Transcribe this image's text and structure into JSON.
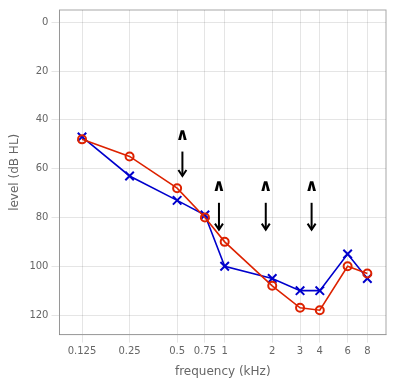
{
  "chart_data": {
    "type": "line",
    "log": "x",
    "x": [
      0.125,
      0.25,
      0.5,
      0.75,
      1,
      2,
      3,
      4,
      6,
      8
    ],
    "series": [
      {
        "color": "#dd2200",
        "marker": "circle",
        "values": [
          48,
          55,
          68,
          80,
          90,
          108,
          117,
          118,
          100,
          103
        ]
      },
      {
        "color": "#0000cc",
        "marker": "x",
        "values": [
          47,
          63,
          73,
          79,
          100,
          105,
          110,
          110,
          95,
          105
        ]
      }
    ],
    "xlabel": "frequency (kHz)",
    "ylabel": "level (dB HL)",
    "xlim": [
      0.09,
      10.5
    ],
    "xticks": [
      0.125,
      0.25,
      0.5,
      0.75,
      1,
      2,
      3,
      4,
      6,
      8
    ],
    "ylim": [
      128,
      -5
    ],
    "yticks": [
      0,
      20,
      40,
      60,
      80,
      100,
      120
    ],
    "grid": true,
    "annotations": [
      {
        "text": "∧",
        "x": 0.54,
        "y": 50,
        "arrow": {
          "x": 0.54,
          "y_from": 53,
          "y_to": 63
        }
      },
      {
        "text": "∧",
        "x": 0.92,
        "y": 71,
        "arrow": {
          "x": 0.92,
          "y_from": 74,
          "y_to": 85
        }
      },
      {
        "text": "∧",
        "x": 1.82,
        "y": 71,
        "arrow": {
          "x": 1.82,
          "y_from": 74,
          "y_to": 85
        }
      },
      {
        "text": "∧",
        "x": 3.55,
        "y": 71,
        "arrow": {
          "x": 3.55,
          "y_from": 74,
          "y_to": 85
        }
      }
    ]
  }
}
